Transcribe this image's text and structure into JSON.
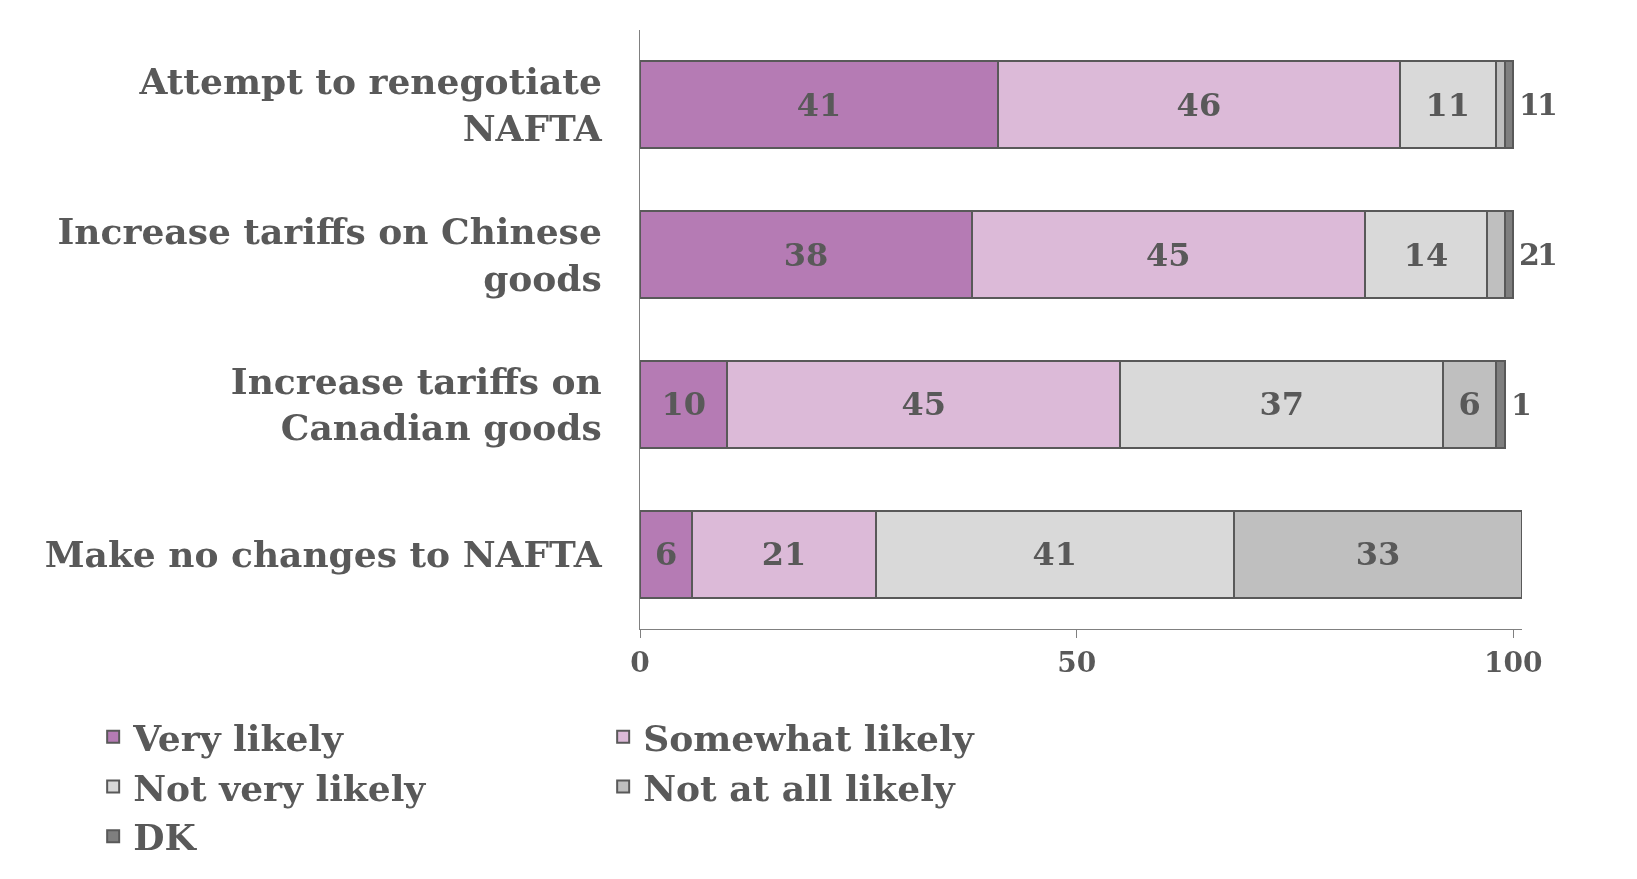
{
  "chart_data": {
    "type": "bar",
    "orientation": "horizontal",
    "stacked": true,
    "data_labels": true,
    "legend": "bottom",
    "grid": false,
    "categories": [
      "Attempt to renegotiate NAFTA",
      "Increase tariffs on Chinese goods",
      "Increase tariffs on Canadian goods",
      "Make no changes to NAFTA"
    ],
    "xlim": [
      0,
      101
    ],
    "xticks": [
      0,
      50,
      100
    ],
    "series": [
      {
        "name": "Very likely",
        "color": "#b57bb4",
        "values": [
          41,
          38,
          10,
          6
        ]
      },
      {
        "name": "Somewhat likely",
        "color": "#dcbad8",
        "values": [
          46,
          45,
          45,
          21
        ]
      },
      {
        "name": "Not very likely",
        "color": "#d9d9d9",
        "values": [
          11,
          14,
          37,
          41
        ]
      },
      {
        "name": "Not at all likely",
        "color": "#bfbfbf",
        "values": [
          1,
          2,
          6,
          33
        ]
      },
      {
        "name": "DK",
        "color": "#7f7f7f",
        "values": [
          1,
          1,
          1,
          null
        ]
      }
    ]
  }
}
